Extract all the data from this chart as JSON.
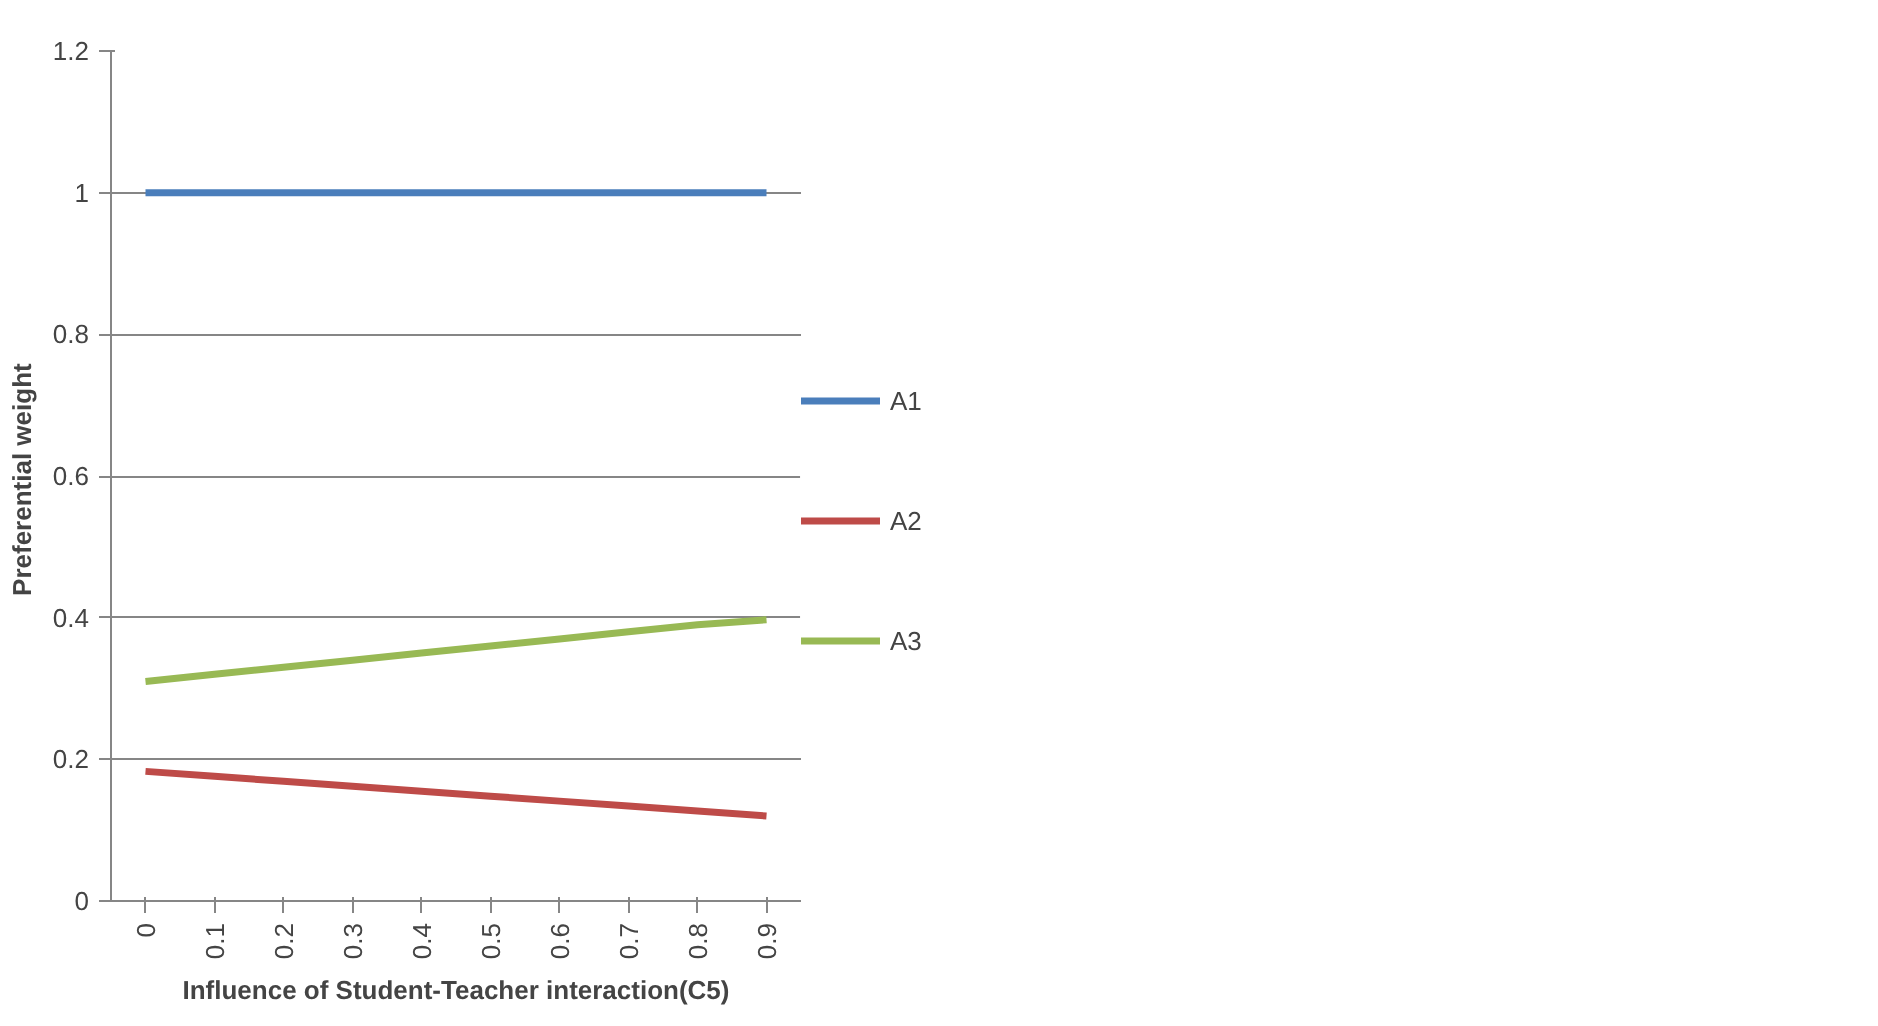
{
  "chart_data": {
    "type": "line",
    "xlabel": "Influence of Student-Teacher interaction(C5)",
    "ylabel": "Preferential  weight",
    "categories": [
      "0",
      "0.1",
      "0.2",
      "0.3",
      "0.4",
      "0.5",
      "0.6",
      "0.7",
      "0.8",
      "0.9"
    ],
    "series": [
      {
        "name": "A1",
        "color": "#4a7ebb",
        "values": [
          1,
          1,
          1,
          1,
          1,
          1,
          1,
          1,
          1,
          1
        ]
      },
      {
        "name": "A2",
        "color": "#be4b48",
        "values": [
          0.183,
          0.176,
          0.169,
          0.162,
          0.155,
          0.148,
          0.141,
          0.134,
          0.127,
          0.12
        ]
      },
      {
        "name": "A3",
        "color": "#98b954",
        "values": [
          0.31,
          0.32,
          0.33,
          0.34,
          0.35,
          0.36,
          0.37,
          0.38,
          0.39,
          0.397
        ]
      }
    ],
    "ylim": [
      0,
      1.2
    ],
    "yticks": [
      0,
      0.2,
      0.4,
      0.6,
      0.8,
      1,
      1.2
    ],
    "grid": "y",
    "legend": "right"
  }
}
